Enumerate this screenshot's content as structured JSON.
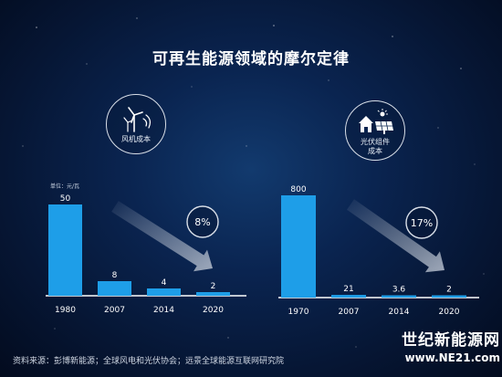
{
  "title": "可再生能源领域的摩尔定律",
  "unit_label": "单位：元/瓦",
  "source": "资料来源：彭博新能源；全球风电和光伏协会；远景全球能源互联网研究院",
  "brand": {
    "line1": "世纪新能源网",
    "line2": "www.NE21.com"
  },
  "colors": {
    "bar": "#1e9ee8",
    "arrow": "#b9c2d0",
    "baseline": "#ffffff"
  },
  "panels": [
    {
      "icon": "wind-turbine-icon",
      "label": [
        "风机成本"
      ],
      "rate": "8%"
    },
    {
      "icon": "solar-house-icon",
      "label": [
        "光伏组件",
        "成本"
      ],
      "rate": "17%"
    }
  ],
  "chart_data": [
    {
      "type": "bar",
      "title": "",
      "categories": [
        "1980",
        "2007",
        "2014",
        "2020"
      ],
      "values": [
        50,
        8,
        4,
        2
      ],
      "labels": [
        "50",
        "8",
        "4",
        "2"
      ],
      "ylim": [
        0,
        50
      ],
      "annotation": "8%"
    },
    {
      "type": "bar",
      "title": "",
      "categories": [
        "1970",
        "2007",
        "2014",
        "2020"
      ],
      "values": [
        800,
        21,
        3.6,
        2
      ],
      "labels": [
        "800",
        "21",
        "3.6",
        "2"
      ],
      "ylim": [
        0,
        800
      ],
      "annotation": "17%"
    }
  ]
}
